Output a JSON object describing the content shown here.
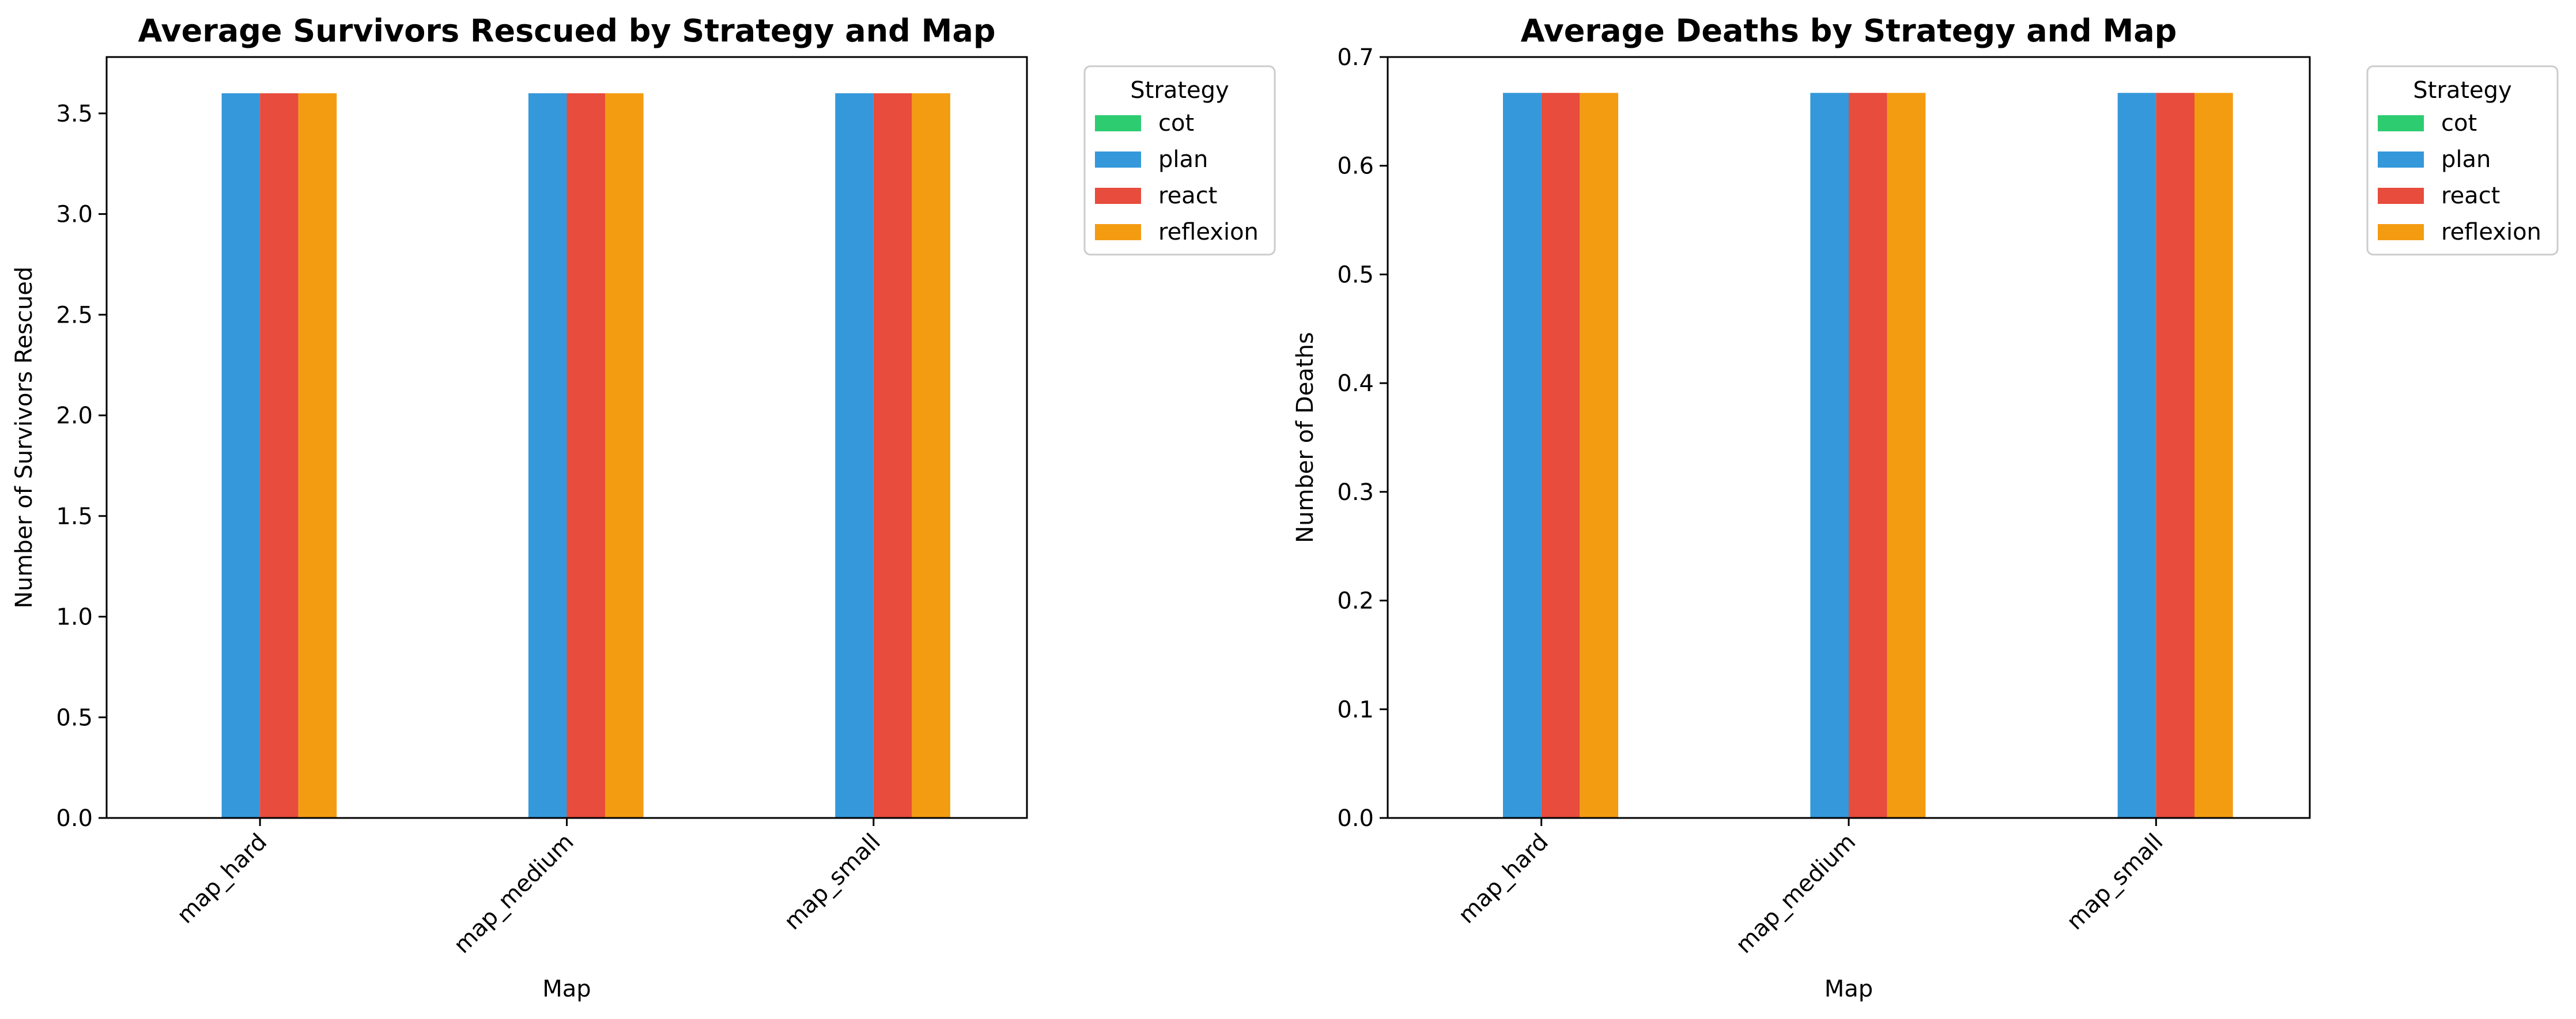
{
  "chart_data": [
    {
      "type": "bar",
      "title": "Average Survivors Rescued by Strategy and Map",
      "xlabel": "Map",
      "ylabel": "Number of Survivors Rescued",
      "categories": [
        "map_hard",
        "map_medium",
        "map_small"
      ],
      "ylim": [
        0,
        3.78
      ],
      "yticks": [
        "0.0",
        "0.5",
        "1.0",
        "1.5",
        "2.0",
        "2.5",
        "3.0",
        "3.5"
      ],
      "grid": false,
      "legend": {
        "title": "Strategy",
        "placement": "outside top-right"
      },
      "series": [
        {
          "name": "cot",
          "color": "#2ecc71",
          "values": [
            0,
            0,
            0
          ]
        },
        {
          "name": "plan",
          "color": "#3498db",
          "values": [
            3.6,
            3.6,
            3.6
          ]
        },
        {
          "name": "react",
          "color": "#e74c3c",
          "values": [
            3.6,
            3.6,
            3.6
          ]
        },
        {
          "name": "reflexion",
          "color": "#f39c12",
          "values": [
            3.6,
            3.6,
            3.6
          ]
        }
      ]
    },
    {
      "type": "bar",
      "title": "Average Deaths by Strategy and Map",
      "xlabel": "Map",
      "ylabel": "Number of Deaths",
      "categories": [
        "map_hard",
        "map_medium",
        "map_small"
      ],
      "ylim": [
        0,
        0.7
      ],
      "yticks": [
        "0.0",
        "0.1",
        "0.2",
        "0.3",
        "0.4",
        "0.5",
        "0.6",
        "0.7"
      ],
      "grid": false,
      "legend": {
        "title": "Strategy",
        "placement": "outside top-right"
      },
      "series": [
        {
          "name": "cot",
          "color": "#2ecc71",
          "values": [
            0,
            0,
            0
          ]
        },
        {
          "name": "plan",
          "color": "#3498db",
          "values": [
            0.667,
            0.667,
            0.667
          ]
        },
        {
          "name": "react",
          "color": "#e74c3c",
          "values": [
            0.667,
            0.667,
            0.667
          ]
        },
        {
          "name": "reflexion",
          "color": "#f39c12",
          "values": [
            0.667,
            0.667,
            0.667
          ]
        }
      ]
    }
  ]
}
